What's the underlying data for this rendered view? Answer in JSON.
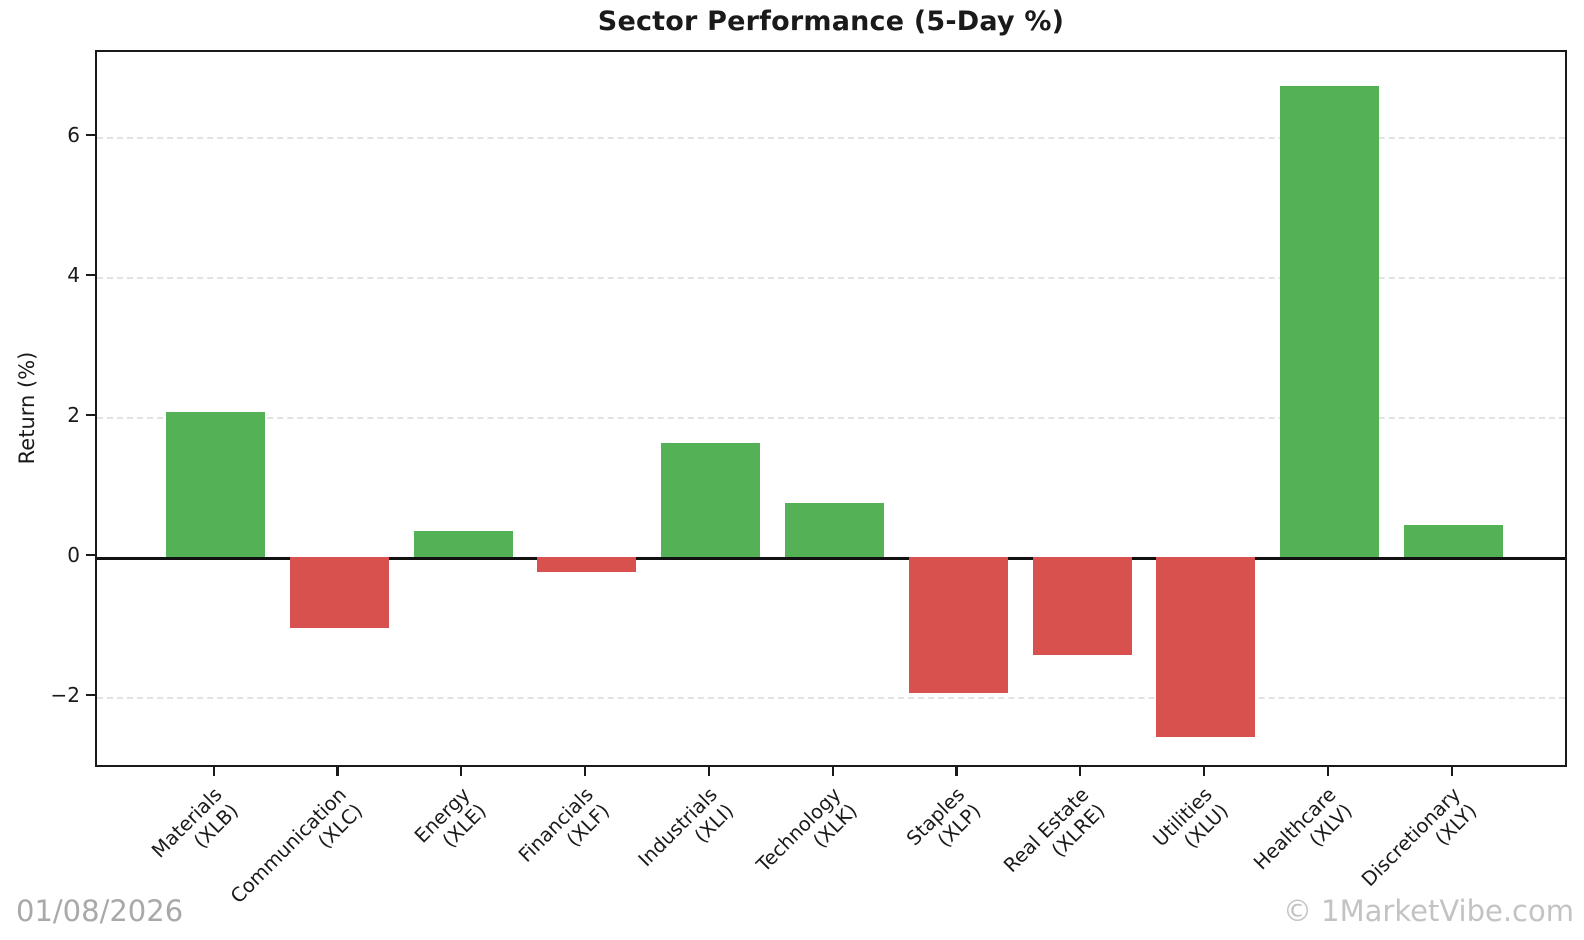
{
  "title": "Sector Performance (5-Day %)",
  "y_axis_label": "Return (%)",
  "watermarks": {
    "date": "01/08/2026",
    "brand": "© 1MarketVibe.com"
  },
  "chart_data": {
    "type": "bar",
    "title": "Sector Performance (5-Day %)",
    "xlabel": "",
    "ylabel": "Return (%)",
    "categories": [
      "Materials (XLB)",
      "Communication (XLC)",
      "Energy (XLE)",
      "Financials (XLF)",
      "Industrials (XLI)",
      "Technology (XLK)",
      "Staples (XLP)",
      "Real Estate (XLRE)",
      "Utilities (XLU)",
      "Healthcare (XLV)",
      "Discretionary (XLY)"
    ],
    "tick_labels": [
      {
        "line1": "Materials",
        "line2": "(XLB)"
      },
      {
        "line1": "Communication",
        "line2": "(XLC)"
      },
      {
        "line1": "Energy",
        "line2": "(XLE)"
      },
      {
        "line1": "Financials",
        "line2": "(XLF)"
      },
      {
        "line1": "Industrials",
        "line2": "(XLI)"
      },
      {
        "line1": "Technology",
        "line2": "(XLK)"
      },
      {
        "line1": "Staples",
        "line2": "(XLP)"
      },
      {
        "line1": "Real Estate",
        "line2": "(XLRE)"
      },
      {
        "line1": "Utilities",
        "line2": "(XLU)"
      },
      {
        "line1": "Healthcare",
        "line2": "(XLV)"
      },
      {
        "line1": "Discretionary",
        "line2": "(XLY)"
      }
    ],
    "values": [
      2.07,
      -1.01,
      0.37,
      -0.22,
      1.63,
      0.77,
      -1.94,
      -1.4,
      -2.58,
      6.73,
      0.45
    ],
    "yticks": [
      {
        "value": 6,
        "label": "6"
      },
      {
        "value": 4,
        "label": "4"
      },
      {
        "value": 2,
        "label": "2"
      },
      {
        "value": 0,
        "label": "0"
      },
      {
        "value": -2,
        "label": "−2"
      }
    ],
    "ylim": [
      -3.03,
      7.21
    ],
    "grid": {
      "horizontal_dashed_at": [
        6,
        4,
        2,
        -2
      ],
      "zero_line": "solid-black"
    },
    "legend": null,
    "colors": {
      "positive": "#55b156",
      "negative": "#d9514e",
      "grid": "#e2e2e2",
      "axis": "#1a1a1a",
      "watermark_date": "#a9a9a9",
      "watermark_brand": "#c3c3c3"
    }
  }
}
